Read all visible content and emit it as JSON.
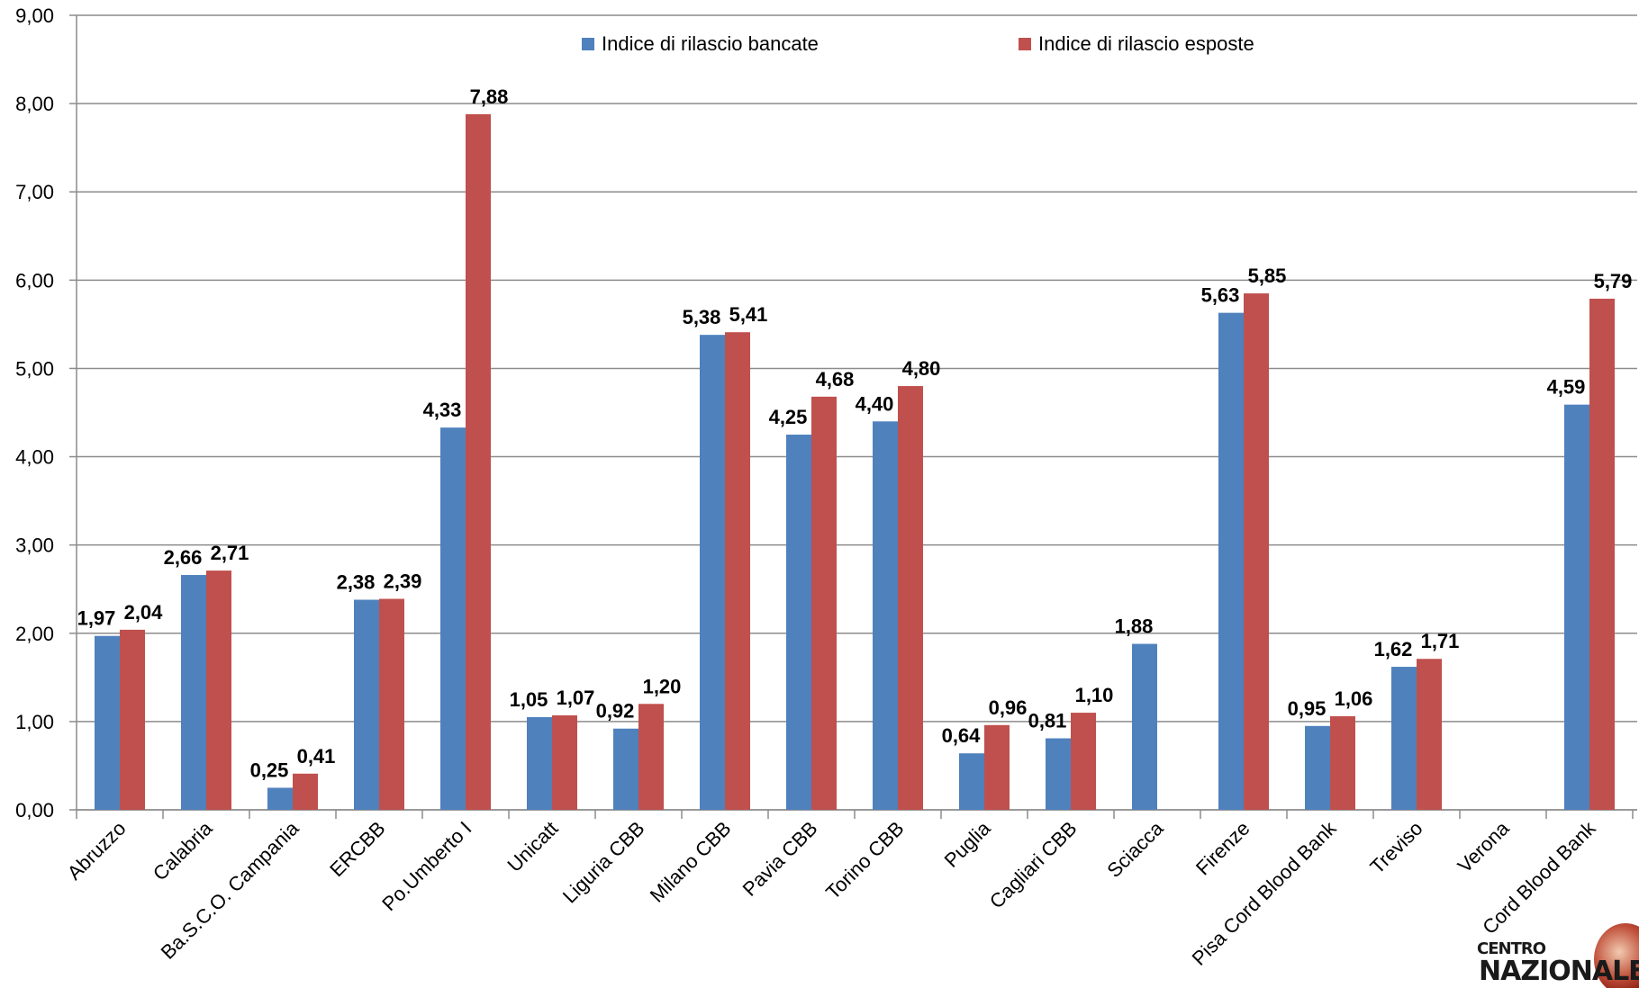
{
  "chart_data": {
    "type": "bar",
    "title": "",
    "xlabel": "",
    "ylabel": "",
    "ylim": [
      0,
      9
    ],
    "y_ticks": [
      "0,00",
      "1,00",
      "2,00",
      "3,00",
      "4,00",
      "5,00",
      "6,00",
      "7,00",
      "8,00",
      "9,00"
    ],
    "grid": true,
    "legend_position": "top",
    "categories": [
      "Abruzzo",
      "Calabria",
      "Ba.S.C.O. Campania",
      "ERCBB",
      "Po.Umberto I",
      "Unicatt",
      "Liguria CBB",
      "Milano CBB",
      "Pavia CBB",
      "Torino CBB",
      "Puglia",
      "Cagliari CBB",
      "Sciacca",
      "Firenze",
      "Pisa Cord Blood Bank",
      "Treviso",
      "Verona",
      "Cord Blood Bank"
    ],
    "series": [
      {
        "name": "Indice di rilascio bancate",
        "color": "#4F81BD",
        "values": [
          1.97,
          2.66,
          0.25,
          2.38,
          4.33,
          1.05,
          0.92,
          5.38,
          4.25,
          4.4,
          0.64,
          0.81,
          1.88,
          5.63,
          0.95,
          1.62,
          null,
          4.59
        ],
        "labels": [
          "1,97",
          "2,66",
          "0,25",
          "2,38",
          "4,33",
          "1,05",
          "0,92",
          "5,38",
          "4,25",
          "4,40",
          "0,64",
          "0,81",
          "1,88",
          "5,63",
          "0,95",
          "1,62",
          "",
          "4,59"
        ]
      },
      {
        "name": "Indice di rilascio esposte",
        "color": "#C0504D",
        "values": [
          2.04,
          2.71,
          0.41,
          2.39,
          7.88,
          1.07,
          1.2,
          5.41,
          4.68,
          4.8,
          0.96,
          1.1,
          null,
          5.85,
          1.06,
          1.71,
          null,
          5.79
        ],
        "labels": [
          "2,04",
          "2,71",
          "0,41",
          "2,39",
          "7,88",
          "1,07",
          "1,20",
          "5,41",
          "4,68",
          "4,80",
          "0,96",
          "1,10",
          "",
          "5,85",
          "1,06",
          "1,71",
          "",
          "5,79"
        ]
      }
    ]
  },
  "logo": {
    "line1": "CENTRO",
    "line2": "NAZIONALE"
  }
}
